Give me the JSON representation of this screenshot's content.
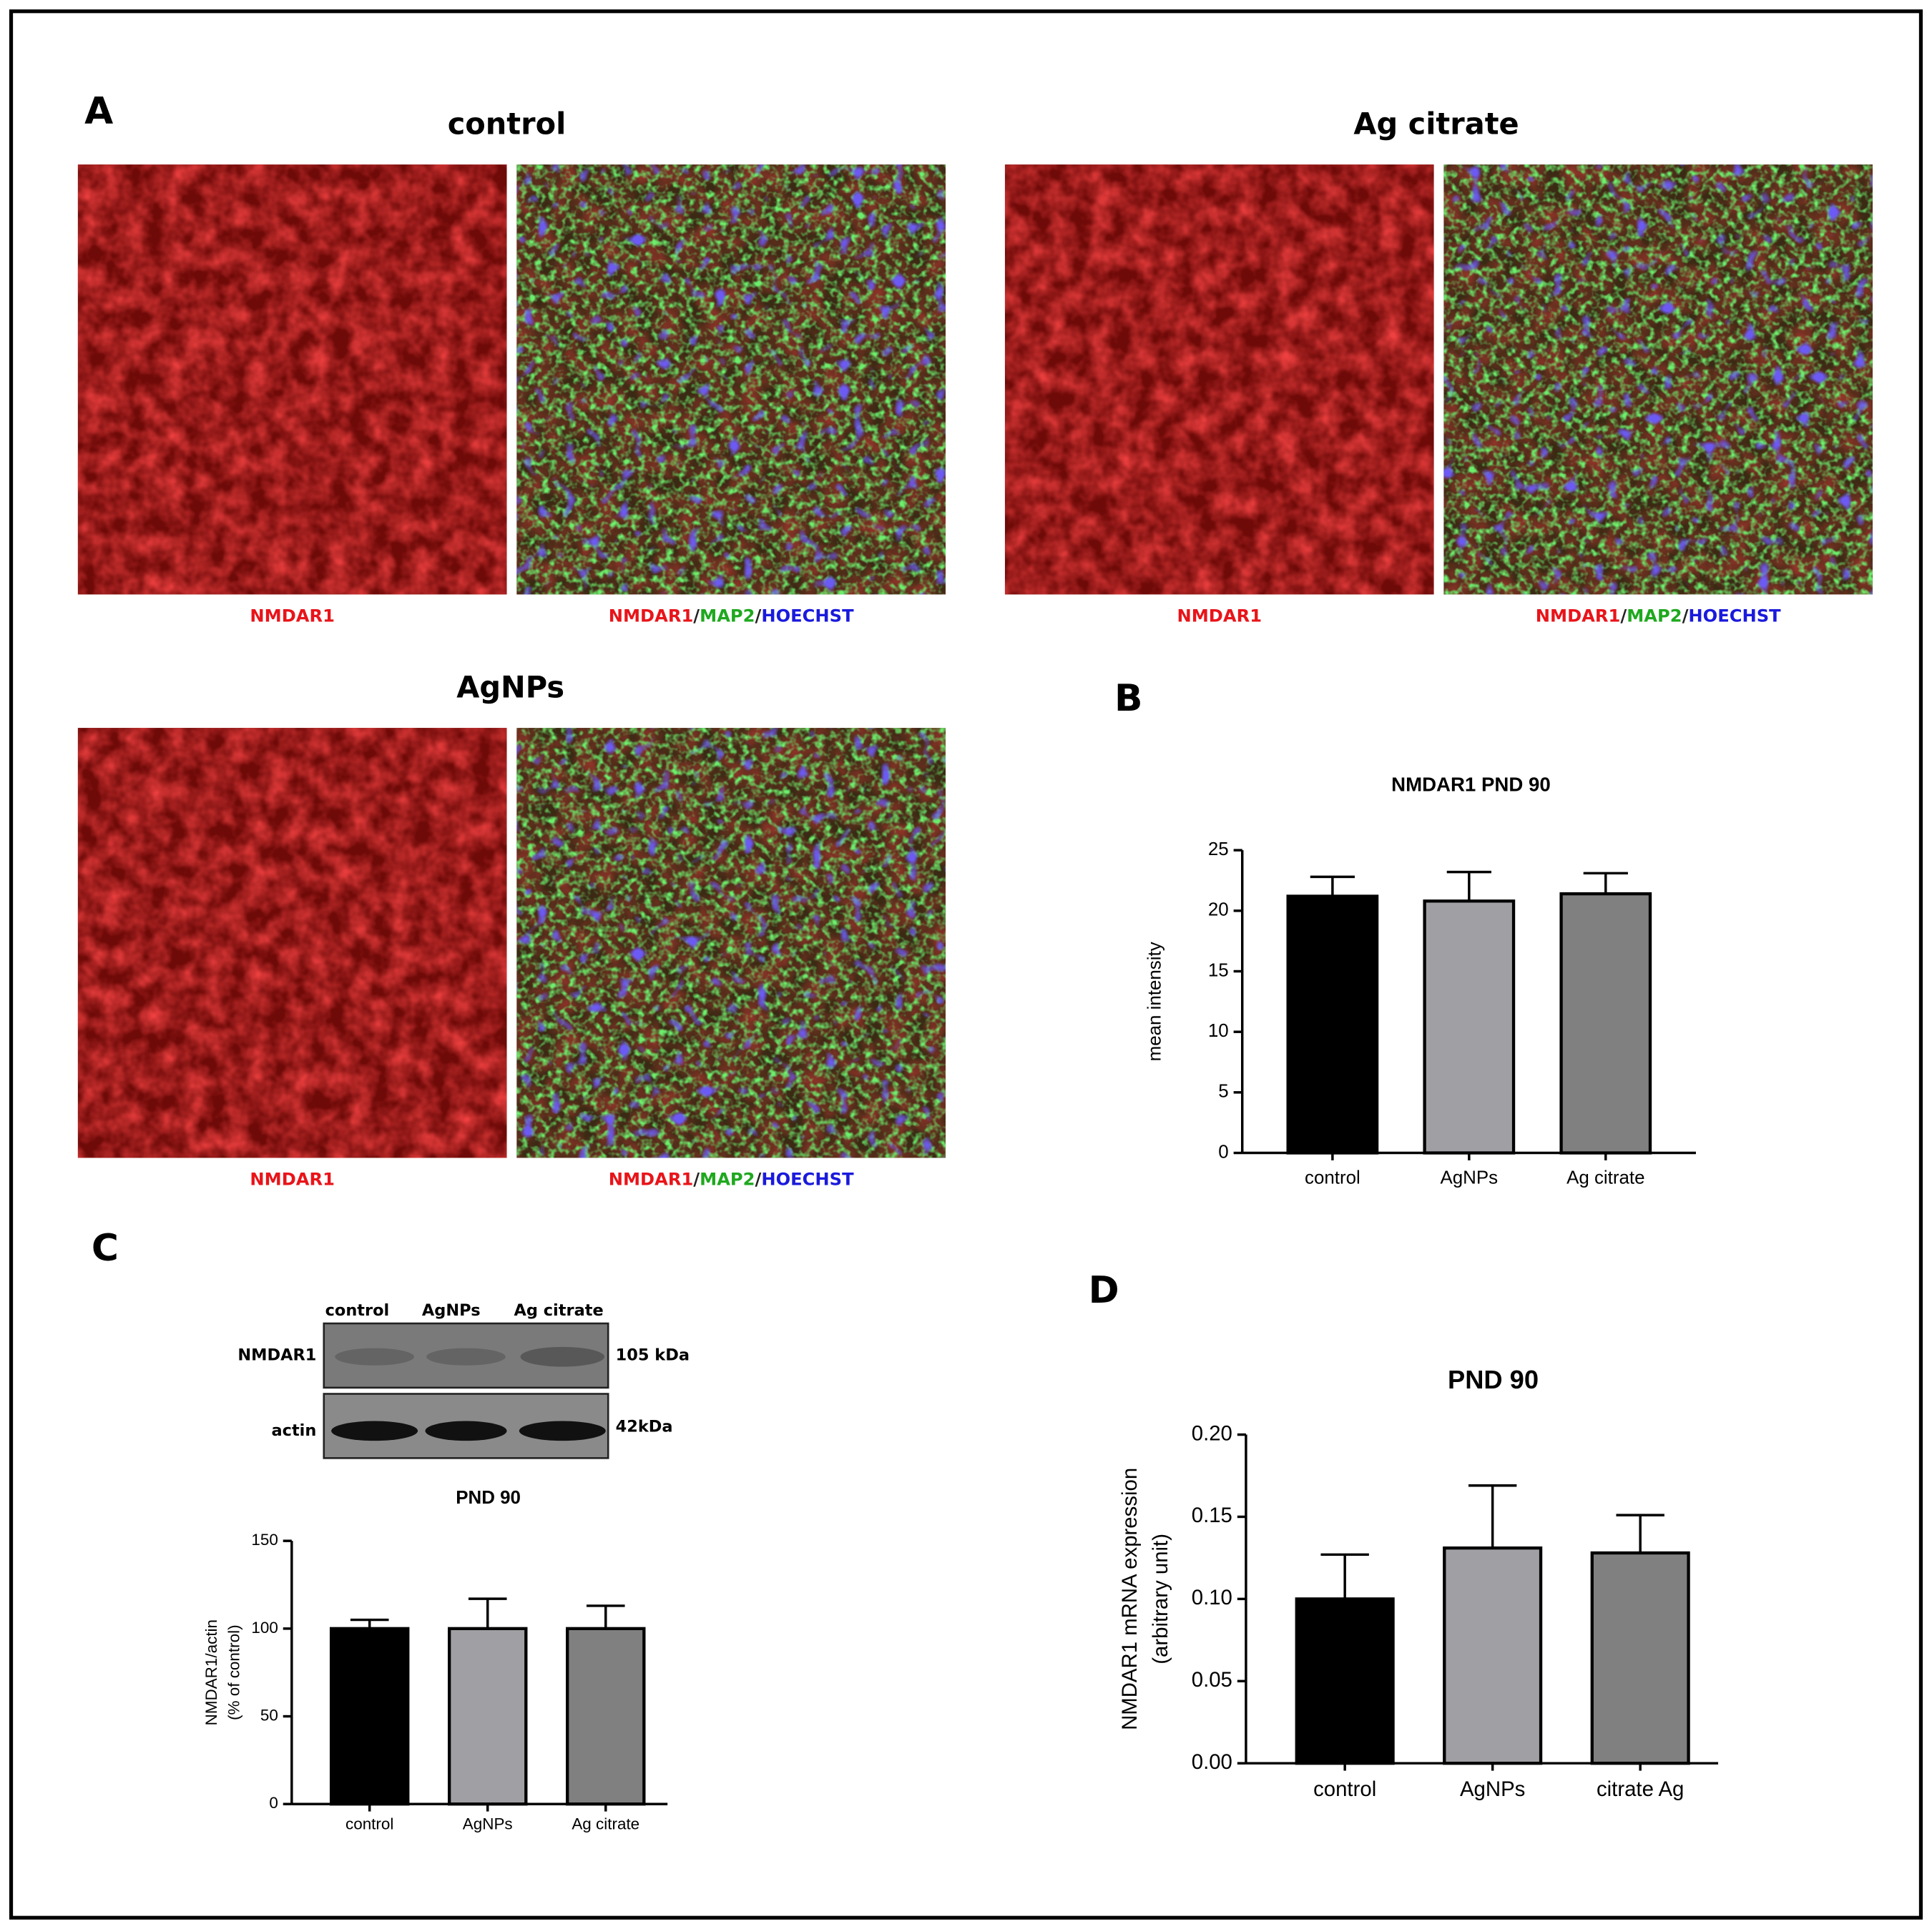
{
  "panel_letters": [
    "A",
    "B",
    "C",
    "D"
  ],
  "panel_a": {
    "groups": [
      {
        "title": "control",
        "single_caption": "NMDAR1",
        "merge_caption": [
          "NMDAR1",
          "/",
          "MAP2",
          "/",
          "HOECHST"
        ]
      },
      {
        "title": "Ag citrate",
        "single_caption": "NMDAR1",
        "merge_caption": [
          "NMDAR1",
          "/",
          "MAP2",
          "/",
          "HOECHST"
        ]
      },
      {
        "title": "AgNPs",
        "single_caption": "NMDAR1",
        "merge_caption": [
          "NMDAR1",
          "/",
          "MAP2",
          "/",
          "HOECHST"
        ]
      }
    ]
  },
  "western_blot": {
    "lanes": [
      "control",
      "AgNPs",
      "Ag citrate"
    ],
    "rows": [
      "NMDAR1",
      "actin"
    ],
    "sizes": [
      "105 kDa",
      "42kDa"
    ]
  },
  "chart_data": [
    {
      "type": "bar",
      "title": "NMDAR1  PND 90",
      "ylabel": [
        "mean intensity"
      ],
      "categories": [
        "control",
        "AgNPs",
        "Ag citrate"
      ],
      "values": [
        21.2,
        20.8,
        21.4
      ],
      "errors": [
        1.6,
        2.4,
        1.7
      ],
      "colors": [
        "#000000",
        "#a0a0a4",
        "#808080"
      ],
      "ylim": [
        0,
        25
      ],
      "yticks": [
        0,
        5,
        10,
        15,
        20,
        25
      ]
    },
    {
      "type": "bar",
      "title": "PND 90",
      "ylabel": [
        "NMDAR1/actin",
        "(% of control)"
      ],
      "categories": [
        "control",
        "AgNPs",
        "Ag citrate"
      ],
      "values": [
        100,
        100,
        100
      ],
      "errors": [
        5,
        17,
        13
      ],
      "colors": [
        "#000000",
        "#a0a0a4",
        "#808080"
      ],
      "ylim": [
        0,
        150
      ],
      "yticks": [
        0,
        50,
        100,
        150
      ]
    },
    {
      "type": "bar",
      "title": "PND 90",
      "ylabel": [
        "NMDAR1 mRNA expression",
        "(arbitrary unit)"
      ],
      "categories": [
        "control",
        "AgNPs",
        "citrate Ag"
      ],
      "values": [
        0.1,
        0.131,
        0.128
      ],
      "errors": [
        0.027,
        0.038,
        0.023
      ],
      "colors": [
        "#000000",
        "#a0a0a4",
        "#808080"
      ],
      "ylim": [
        0,
        0.2
      ],
      "yticks": [
        {
          "value": 0,
          "label": "0.00"
        },
        {
          "value": 0.05,
          "label": "0.05"
        },
        {
          "value": 0.1,
          "label": "0.10"
        },
        {
          "value": 0.15,
          "label": "0.15"
        },
        {
          "value": 0.2,
          "label": "0.20"
        }
      ]
    }
  ]
}
